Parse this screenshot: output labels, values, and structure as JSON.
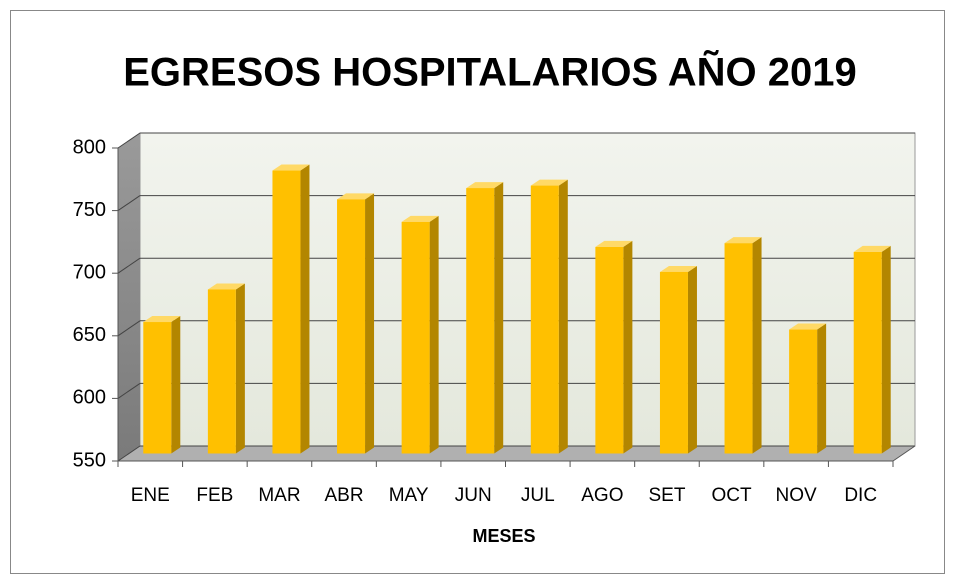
{
  "chart_data": {
    "type": "bar",
    "title": "EGRESOS HOSPITALARIOS AÑO 2019",
    "x_label": "MESES",
    "categories": [
      "ENE",
      "FEB",
      "MAR",
      "ABR",
      "MAY",
      "JUN",
      "JUL",
      "AGO",
      "SET",
      "OCT",
      "NOV",
      "DIC"
    ],
    "values": [
      655,
      681,
      776,
      753,
      735,
      762,
      764,
      715,
      695,
      718,
      649,
      711
    ],
    "color": "#ffc000",
    "ylim": [
      550,
      800
    ],
    "yticks": [
      550,
      600,
      650,
      700,
      750,
      800
    ],
    "grid": true
  }
}
